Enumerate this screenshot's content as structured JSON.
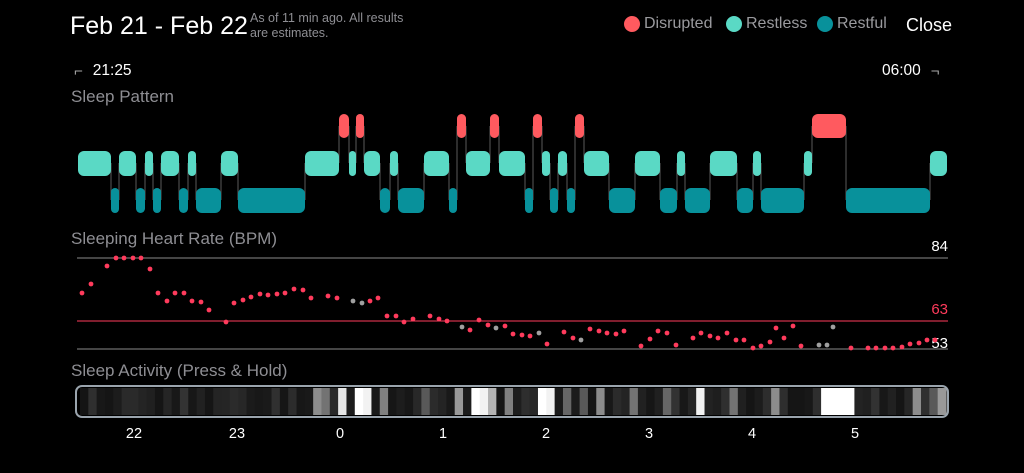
{
  "header": {
    "title": "Feb 21 - Feb 22",
    "estimate_line1": "As of 11 min ago. All results",
    "estimate_line2": "are estimates.",
    "close_label": "Close"
  },
  "legend": [
    {
      "label": "Disrupted",
      "color": "#ff5a5f"
    },
    {
      "label": "Restless",
      "color": "#5ad9c5"
    },
    {
      "label": "Restful",
      "color": "#08919b"
    }
  ],
  "time_range": {
    "start": "21:25",
    "end": "06:00"
  },
  "sections": {
    "sleep_pattern": "Sleep Pattern",
    "heart_rate": "Sleeping Heart Rate (BPM)",
    "activity": "Sleep Activity (Press & Hold)"
  },
  "heart_rate": {
    "ref_max": "84",
    "ref_avg": "63",
    "ref_min": "53",
    "colors": {
      "normal": "#ff3b5c",
      "gray": "#a0a0a0"
    }
  },
  "activity_axis_labels": [
    "22",
    "23",
    "0",
    "1",
    "2",
    "3",
    "4",
    "5"
  ]
}
